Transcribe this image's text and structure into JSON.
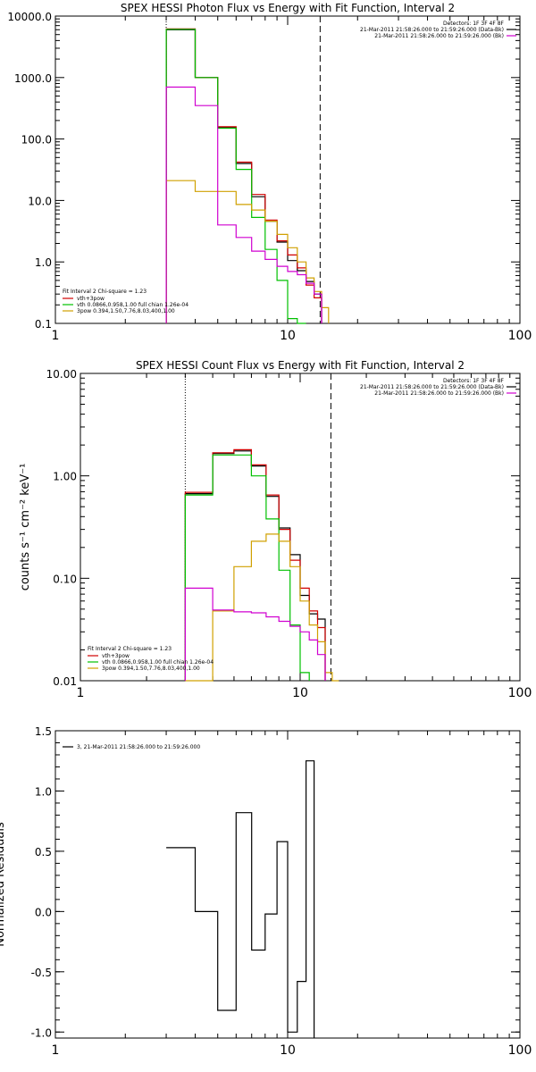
{
  "chart_data": [
    {
      "type": "line",
      "title": "SPEX HESSI Photon Flux vs Energy with Fit Function, Interval 2",
      "xlabel": "",
      "ylabel": "",
      "x_scale": "log",
      "y_scale": "log",
      "xlim": [
        1,
        100
      ],
      "ylim": [
        0.1,
        10000
      ],
      "x_ticks": [
        {
          "v": 1,
          "label": "1"
        },
        {
          "v": 10,
          "label": "10"
        },
        {
          "v": 100,
          "label": "100"
        }
      ],
      "y_ticks": [
        {
          "v": 0.1,
          "label": "0.1"
        },
        {
          "v": 1,
          "label": "1.0"
        },
        {
          "v": 10,
          "label": "10.0"
        },
        {
          "v": 100,
          "label": "100.0"
        },
        {
          "v": 1000,
          "label": "1000.0"
        },
        {
          "v": 10000,
          "label": "10000.0"
        }
      ],
      "vlines": [
        {
          "x": 3.0,
          "style": "dotted"
        },
        {
          "x": 13.8,
          "style": "dashed"
        }
      ],
      "info": [
        "Detectors: 1F 3F 4F 8F",
        "21-Mar-2011 21:58:26.000 to 21:59:26.000 (Data-Bk)",
        "21-Mar-2011 21:58:26.000 to 21:59:26.000 (Bk)"
      ],
      "info_colors": [
        "#000000",
        "#000000",
        "#d000d0"
      ],
      "fit_text": "Fit Interval 2   Chi-square = 1.23",
      "legend": [
        {
          "label": "vth+3pow",
          "color": "#d00000"
        },
        {
          "label": "vth 0.0866,0.958,1.00  full chian 1.26e-04",
          "color": "#00c000"
        },
        {
          "label": "3pow 0.394,1.50,7.76,8.03,400,1.00",
          "color": "#d0a000"
        }
      ],
      "edges": [
        3.0,
        4.0,
        5.0,
        6.0,
        7.0,
        8.0,
        9.0,
        10.0,
        11.0,
        12.0,
        13.0,
        14.0,
        15.0
      ],
      "series": [
        {
          "name": "data-bk",
          "color": "#000000",
          "values": [
            6000,
            1000,
            155,
            40,
            11.5,
            4.6,
            2.1,
            1.05,
            0.72,
            0.48,
            0.3
          ]
        },
        {
          "name": "total",
          "color": "#d00000",
          "values": [
            6200,
            1000,
            158,
            42,
            12.5,
            4.8,
            2.2,
            1.3,
            0.8,
            0.42,
            0.26
          ]
        },
        {
          "name": "thermal",
          "color": "#00c000",
          "values": [
            6100,
            1000,
            150,
            32,
            5.3,
            1.6,
            0.5,
            0.12,
            0.035
          ]
        },
        {
          "name": "power",
          "color": "#d0a000",
          "values": [
            21,
            14,
            14,
            8.6,
            7.0,
            4.6,
            2.8,
            1.7,
            1.0,
            0.55,
            0.33,
            0.18
          ]
        },
        {
          "name": "bk",
          "color": "#d000d0",
          "values": [
            700,
            350,
            4.0,
            2.5,
            1.5,
            1.1,
            0.85,
            0.7,
            0.62,
            0.45,
            0.3
          ]
        }
      ]
    },
    {
      "type": "line",
      "title": "SPEX HESSI Count Flux vs Energy with Fit Function, Interval 2",
      "xlabel": "",
      "ylabel": "counts s⁻¹ cm⁻² keV⁻¹",
      "x_scale": "log",
      "y_scale": "log",
      "xlim": [
        1,
        100
      ],
      "ylim": [
        0.01,
        10
      ],
      "x_ticks": [
        {
          "v": 1,
          "label": "1"
        },
        {
          "v": 10,
          "label": "10"
        },
        {
          "v": 100,
          "label": "100"
        }
      ],
      "y_ticks": [
        {
          "v": 0.01,
          "label": "0.01"
        },
        {
          "v": 0.1,
          "label": "0.10"
        },
        {
          "v": 1,
          "label": "1.00"
        },
        {
          "v": 10,
          "label": "10.00"
        }
      ],
      "vlines": [
        {
          "x": 3.0,
          "style": "dotted"
        },
        {
          "x": 13.8,
          "style": "dashed"
        }
      ],
      "info": [
        "Detectors: 1F 3F 4F 8F",
        "21-Mar-2011 21:58:26.000 to 21:59:26.000 (Data-Bk)",
        "21-Mar-2011 21:58:26.000 to 21:59:26.000 (Bk)"
      ],
      "info_colors": [
        "#000000",
        "#000000",
        "#d000d0"
      ],
      "fit_text": "Fit Interval 2   Chi-square = 1.23",
      "legend": [
        {
          "label": "vth+3pow",
          "color": "#d00000"
        },
        {
          "label": "vth 0.0866,0.958,1.00  full chian 1.26e-04",
          "color": "#00c000"
        },
        {
          "label": "3pow 0.394,1.50,7.76,8.03,400,1.00",
          "color": "#d0a000"
        }
      ],
      "edges": [
        3.0,
        4.0,
        5.0,
        6.0,
        7.0,
        8.0,
        9.0,
        10.0,
        11.0,
        12.0,
        13.0,
        14.0,
        15.0
      ],
      "series": [
        {
          "name": "data-bk",
          "color": "#000000",
          "values": [
            0.67,
            1.65,
            1.75,
            1.25,
            0.63,
            0.31,
            0.17,
            0.068,
            0.045,
            0.04
          ]
        },
        {
          "name": "total",
          "color": "#d00000",
          "values": [
            0.69,
            1.68,
            1.8,
            1.28,
            0.65,
            0.3,
            0.15,
            0.08,
            0.048,
            0.033
          ]
        },
        {
          "name": "thermal",
          "color": "#00c000",
          "values": [
            0.65,
            1.6,
            1.6,
            1.0,
            0.38,
            0.12,
            0.035,
            0.012
          ]
        },
        {
          "name": "power",
          "color": "#d0a000",
          "values": [
            0.01,
            0.048,
            0.13,
            0.23,
            0.27,
            0.23,
            0.13,
            0.06,
            0.035,
            0.024,
            0.012,
            0.01
          ]
        },
        {
          "name": "bk",
          "color": "#d000d0",
          "values": [
            0.08,
            0.049,
            0.047,
            0.046,
            0.042,
            0.038,
            0.034,
            0.03,
            0.025,
            0.018
          ]
        }
      ]
    },
    {
      "type": "line",
      "title": "",
      "xlabel": "",
      "ylabel": "Normalized Residuals",
      "x_scale": "log",
      "y_scale": "linear",
      "xlim": [
        1,
        100
      ],
      "ylim": [
        -1.05,
        1.5
      ],
      "x_ticks": [
        {
          "v": 1,
          "label": "1"
        },
        {
          "v": 10,
          "label": "10"
        },
        {
          "v": 100,
          "label": "100"
        }
      ],
      "y_ticks": [
        {
          "v": -1.0,
          "label": "-1.0"
        },
        {
          "v": -0.5,
          "label": "-0.5"
        },
        {
          "v": 0.0,
          "label": "0.0"
        },
        {
          "v": 0.5,
          "label": "0.5"
        },
        {
          "v": 1.0,
          "label": "1.0"
        },
        {
          "v": 1.5,
          "label": "1.5"
        }
      ],
      "legend": [
        {
          "label": "3, 21-Mar-2011 21:58:26.000 to 21:59:26.000",
          "color": "#000000"
        }
      ],
      "edges": [
        3.0,
        4.0,
        5.0,
        6.0,
        7.0,
        8.0,
        9.0,
        10.0,
        11.0,
        12.0,
        13.0,
        14.0
      ],
      "series": [
        {
          "name": "residuals",
          "color": "#000000",
          "values": [
            0.53,
            0.0,
            -0.82,
            0.82,
            -0.32,
            -0.02,
            0.58,
            -1.0,
            -0.58,
            1.25
          ]
        }
      ]
    }
  ]
}
